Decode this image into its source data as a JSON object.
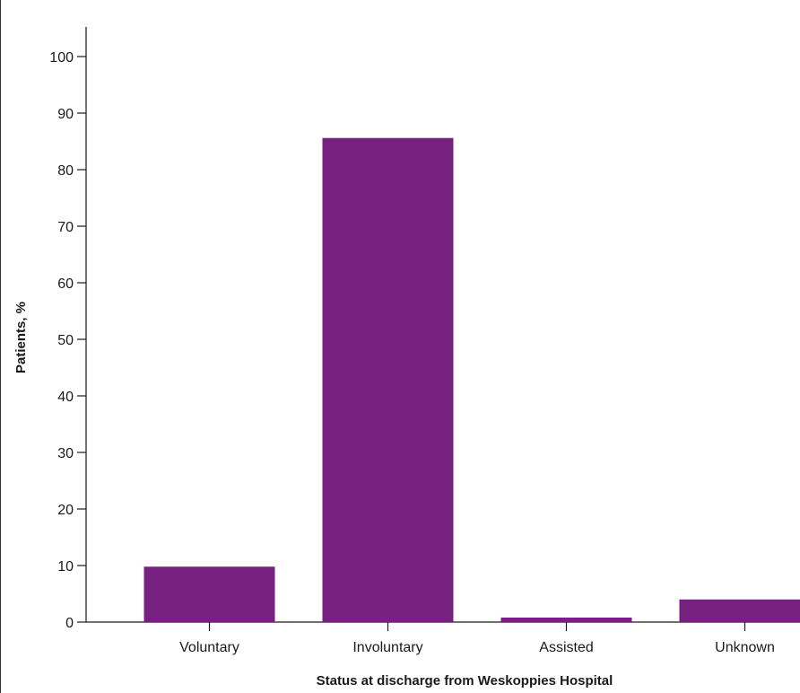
{
  "chart_data": {
    "type": "bar",
    "title": "",
    "xlabel": "Status at discharge from Weskoppies Hospital",
    "ylabel": "Patients, %",
    "categories": [
      "Voluntary",
      "Involuntary",
      "Assisted",
      "Unknown"
    ],
    "values": [
      9.8,
      85.6,
      0.8,
      4.0
    ],
    "ylim": [
      0,
      105
    ],
    "yticks": [
      0,
      10,
      20,
      30,
      40,
      50,
      60,
      70,
      80,
      90,
      100
    ],
    "grid": false,
    "legend": "none",
    "bar_color": "#76217f",
    "axis_color": "#1a1a1a"
  }
}
